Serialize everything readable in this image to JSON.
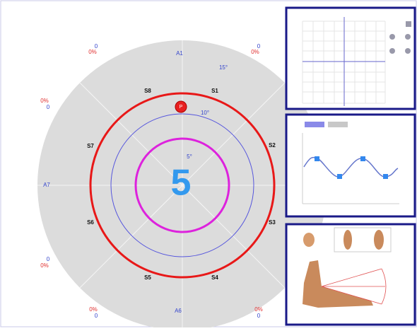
{
  "target": {
    "center_number": "5",
    "axis_labels": {
      "top": "A1",
      "left": "A7",
      "bottom": "A6"
    },
    "ring_labels": [
      "15°",
      "10°",
      "5°"
    ],
    "sector_labels": [
      "S8",
      "S1",
      "S2",
      "S3",
      "S4",
      "S5",
      "S6",
      "S7"
    ],
    "marker": "P",
    "corner_stats": [
      {
        "count": "0",
        "percent": "0%"
      },
      {
        "count": "0",
        "percent": "0%"
      },
      {
        "count": "0",
        "percent": "0%"
      },
      {
        "count": "0",
        "percent": "0%"
      },
      {
        "count": "0",
        "percent": "0%"
      },
      {
        "count": "0",
        "percent": "0%"
      }
    ]
  }
}
